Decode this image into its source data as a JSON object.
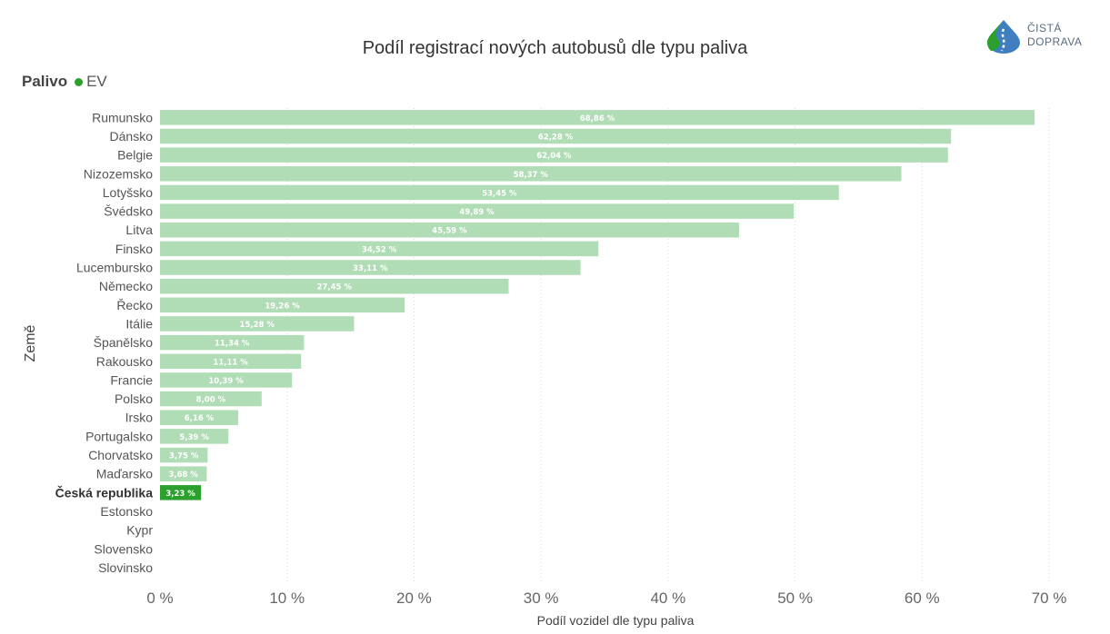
{
  "colors": {
    "bar": "#b0ddb6",
    "highlight": "#2ca02c",
    "legend_dot": "#2ca02c",
    "grid": "#d9d9d9",
    "label_light": "#ffffff",
    "text": "#555555"
  },
  "logo": {
    "line1": "ČISTÁ",
    "line2": "DOPRAVA",
    "icon": "road-drop-icon"
  },
  "legend": {
    "title": "Palivo",
    "items": [
      {
        "label": "EV"
      }
    ]
  },
  "chart_data": {
    "type": "bar",
    "orientation": "horizontal",
    "title": "Podíl registrací nových autobusů dle typu paliva",
    "xlabel": "Podíl vozidel dle typu paliva",
    "ylabel": "Země",
    "xlim": [
      0,
      70
    ],
    "xticks": [
      "0 %",
      "10 %",
      "20 %",
      "30 %",
      "40 %",
      "50 %",
      "60 %",
      "70 %"
    ],
    "xtick_values": [
      0,
      10,
      20,
      30,
      40,
      50,
      60,
      70
    ],
    "grid": true,
    "legend_position": "top-left",
    "highlight_category": "Česká republika",
    "categories": [
      "Rumunsko",
      "Dánsko",
      "Belgie",
      "Nizozemsko",
      "Lotyšsko",
      "Švédsko",
      "Litva",
      "Finsko",
      "Lucembursko",
      "Německo",
      "Řecko",
      "Itálie",
      "Španělsko",
      "Rakousko",
      "Francie",
      "Polsko",
      "Irsko",
      "Portugalsko",
      "Chorvatsko",
      "Maďarsko",
      "Česká republika",
      "Estonsko",
      "Kypr",
      "Slovensko",
      "Slovinsko"
    ],
    "series": [
      {
        "name": "EV",
        "values": [
          68.86,
          62.28,
          62.04,
          58.37,
          53.45,
          49.89,
          45.59,
          34.52,
          33.11,
          27.45,
          19.26,
          15.28,
          11.34,
          11.11,
          10.39,
          8.0,
          6.16,
          5.39,
          3.75,
          3.68,
          3.23,
          null,
          null,
          null,
          null
        ],
        "labels": [
          "68,86 %",
          "62,28 %",
          "62,04 %",
          "58,37 %",
          "53,45 %",
          "49,89 %",
          "45,59 %",
          "34,52 %",
          "33,11 %",
          "27,45 %",
          "19,26 %",
          "15,28 %",
          "11,34 %",
          "11,11 %",
          "10,39 %",
          "8,00 %",
          "6,16 %",
          "5,39 %",
          "3,75 %",
          "3,68 %",
          "3,23 %",
          "",
          "",
          "",
          ""
        ]
      }
    ]
  }
}
